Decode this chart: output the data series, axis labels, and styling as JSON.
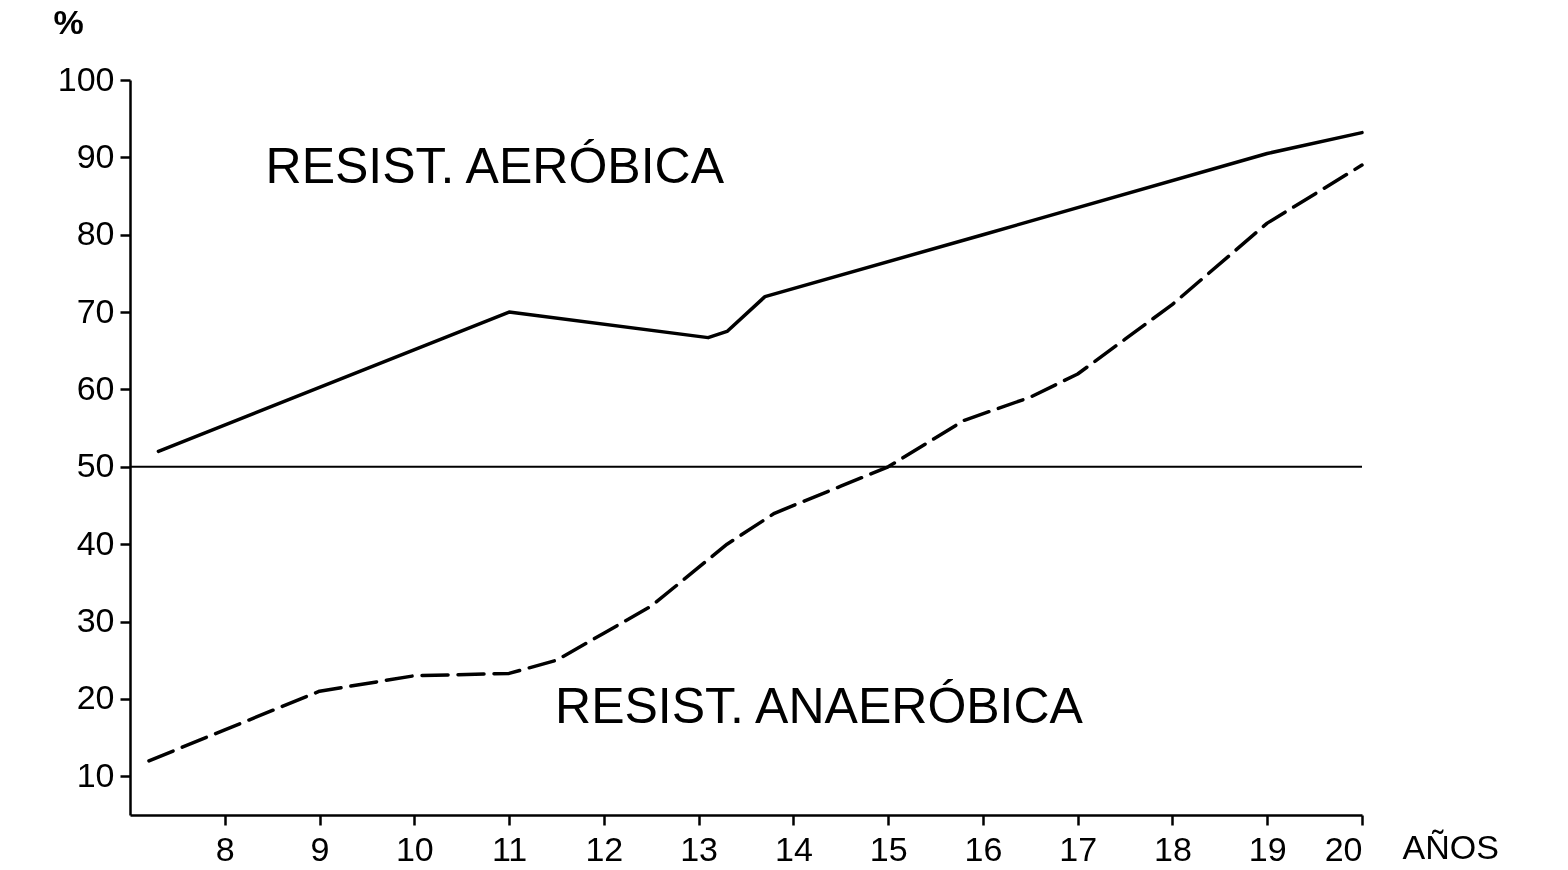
{
  "chart_data": {
    "type": "line",
    "ylabel": "%",
    "xlabel": "AÑOS",
    "xlim": [
      7,
      20
    ],
    "xticks": [
      8,
      9,
      10,
      11,
      12,
      13,
      14,
      15,
      16,
      17,
      18,
      19,
      20
    ],
    "ylim": [
      5,
      100
    ],
    "yticks": [
      10,
      20,
      30,
      40,
      50,
      60,
      70,
      80,
      90,
      100
    ],
    "grid": false,
    "legend": false,
    "marker": "none",
    "ref_lines": [
      {
        "axis": "y",
        "value": 50,
        "color": "#000000"
      }
    ],
    "series": [
      {
        "name": "RESIST. AERÓBICA",
        "color": "#000000",
        "line_style": "solid",
        "x": [
          7.3,
          11,
          13.1,
          13.3,
          13.7,
          16,
          19,
          20
        ],
        "values": [
          52,
          70,
          66.7,
          67.5,
          72,
          80,
          90.5,
          93.2
        ]
      },
      {
        "name": "RESIST. ANAERÓBICA",
        "color": "#000000",
        "line_style": "dashed",
        "x": [
          7.2,
          8,
          9,
          10,
          11,
          11.5,
          12,
          12.5,
          13.3,
          13.8,
          14.5,
          15,
          15.8,
          16.5,
          17,
          17.5,
          18,
          19,
          20
        ],
        "values": [
          12,
          16,
          21,
          23,
          23.3,
          25,
          28.5,
          32,
          40,
          44,
          47.5,
          50,
          56,
          59,
          62,
          66.5,
          71,
          81.5,
          89
        ]
      }
    ]
  }
}
